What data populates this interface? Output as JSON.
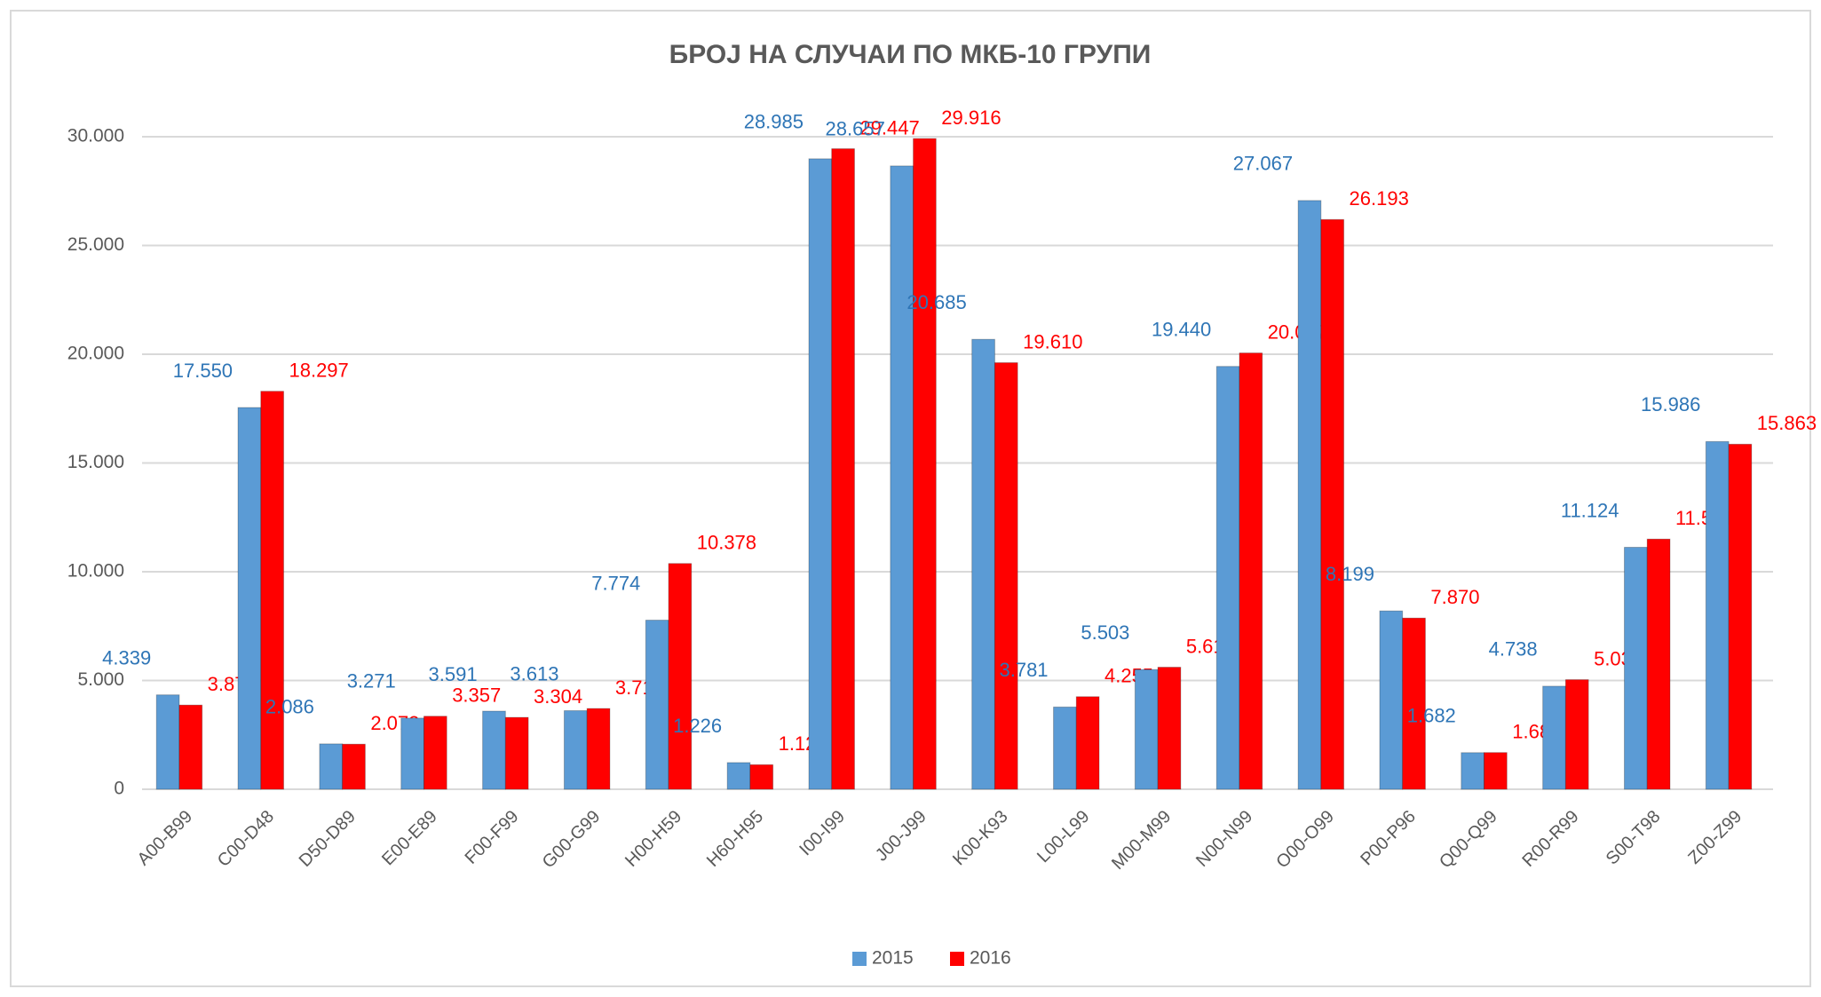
{
  "chart_data": {
    "type": "bar",
    "title": "БРОЈ НА СЛУЧАИ ПО МКБ-10 ГРУПИ",
    "categories": [
      "A00-B99",
      "C00-D48",
      "D50-D89",
      "E00-E89",
      "F00-F99",
      "G00-G99",
      "H00-H59",
      "H60-H95",
      "I00-I99",
      "J00-J99",
      "K00-K93",
      "L00-L99",
      "M00-M99",
      "N00-N99",
      "O00-O99",
      "P00-P96",
      "Q00-Q99",
      "R00-R99",
      "S00-T98",
      "Z00-Z99"
    ],
    "series": [
      {
        "name": "2015",
        "color": "#5b9bd5",
        "label_color": "#2e75b6",
        "values": [
          4339,
          17550,
          2086,
          3271,
          3591,
          3613,
          7774,
          1226,
          28985,
          28657,
          20685,
          3781,
          5503,
          19440,
          27067,
          8199,
          1682,
          4738,
          11124,
          15986
        ],
        "value_labels": [
          "4.339",
          "17.550",
          "2.086",
          "3.271",
          "3.591",
          "3.613",
          "7.774",
          "1.226",
          "28.985",
          "28.657",
          "20.685",
          "3.781",
          "5.503",
          "19.440",
          "27.067",
          "8.199",
          "1.682",
          "4.738",
          "11.124",
          "15.986"
        ]
      },
      {
        "name": "2016",
        "color": "#ff0000",
        "label_color": "#ff0000",
        "values": [
          3870,
          18297,
          2072,
          3357,
          3304,
          3712,
          10378,
          1127,
          29447,
          29916,
          19610,
          4255,
          5610,
          20057,
          26193,
          7870,
          1686,
          5038,
          11501,
          15863
        ],
        "value_labels": [
          "3.870",
          "18.297",
          "2.072",
          "3.357",
          "3.304",
          "3.712",
          "10.378",
          "1.127",
          "29.447",
          "29.916",
          "19.610",
          "4.255",
          "5.610",
          "20.057",
          "26.193",
          "7.870",
          "1.686",
          "5.038",
          "11.501",
          "15.863"
        ]
      }
    ],
    "ylim": [
      0,
      30000
    ],
    "yticks": [
      0,
      {
        "value": 5000,
        "label": "5.000"
      },
      {
        "value": 10000,
        "label": "10.000"
      },
      {
        "value": 15000,
        "label": "15.000"
      },
      {
        "value": 20000,
        "label": "20.000"
      },
      {
        "value": 25000,
        "label": "25.000"
      },
      {
        "value": 30000,
        "label": "30.000"
      }
    ],
    "grid": true,
    "legend": "bottom"
  }
}
